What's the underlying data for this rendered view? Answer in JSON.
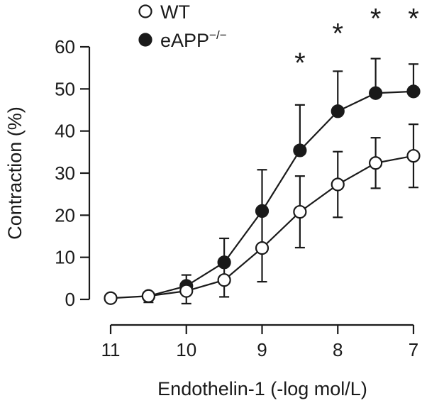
{
  "chart_data": {
    "type": "line",
    "title": "",
    "xlabel": "Endothelin-1 (-log mol/L)",
    "ylabel": "Contraction (%)",
    "xlim": [
      11,
      7
    ],
    "ylim": [
      0,
      60
    ],
    "x_reversed": true,
    "x_ticks": [
      11,
      10,
      9,
      8,
      7
    ],
    "y_ticks": [
      0,
      10,
      20,
      30,
      40,
      50,
      60
    ],
    "legend_position": "top-left",
    "x": [
      11,
      10.5,
      10,
      9.5,
      9,
      8.5,
      8,
      7.5,
      7
    ],
    "series": [
      {
        "name": "WT",
        "marker": "open-circle",
        "values": [
          0.3,
          0.8,
          2.0,
          4.6,
          12.2,
          20.8,
          27.3,
          32.4,
          34.1
        ],
        "error_upper": [
          null,
          0.5,
          1.5,
          4.0,
          8.0,
          8.5,
          7.8,
          6.0,
          7.5
        ],
        "error_lower": [
          null,
          1.5,
          3.0,
          4.0,
          8.0,
          8.5,
          7.8,
          6.0,
          7.5
        ]
      },
      {
        "name": "eAPP−/−",
        "marker": "filled-circle",
        "values": [
          null,
          0.8,
          3.2,
          8.8,
          21.0,
          35.4,
          44.7,
          49.0,
          49.4
        ],
        "error_upper": [
          null,
          null,
          2.6,
          5.7,
          9.8,
          10.8,
          9.5,
          8.2,
          6.5
        ],
        "error_lower": [
          null,
          null,
          0,
          0,
          0,
          0,
          0,
          0,
          0
        ]
      }
    ],
    "annotations": [
      {
        "text": "*",
        "x": 8.5,
        "y": 58
      },
      {
        "text": "*",
        "x": 8,
        "y": 65
      },
      {
        "text": "*",
        "x": 7.5,
        "y": 68.5
      },
      {
        "text": "*",
        "x": 7,
        "y": 68.5
      }
    ],
    "legend": [
      {
        "label": "WT",
        "marker": "open-circle"
      },
      {
        "label_main": "eAPP",
        "label_sup": "−/−",
        "marker": "filled-circle"
      }
    ]
  }
}
